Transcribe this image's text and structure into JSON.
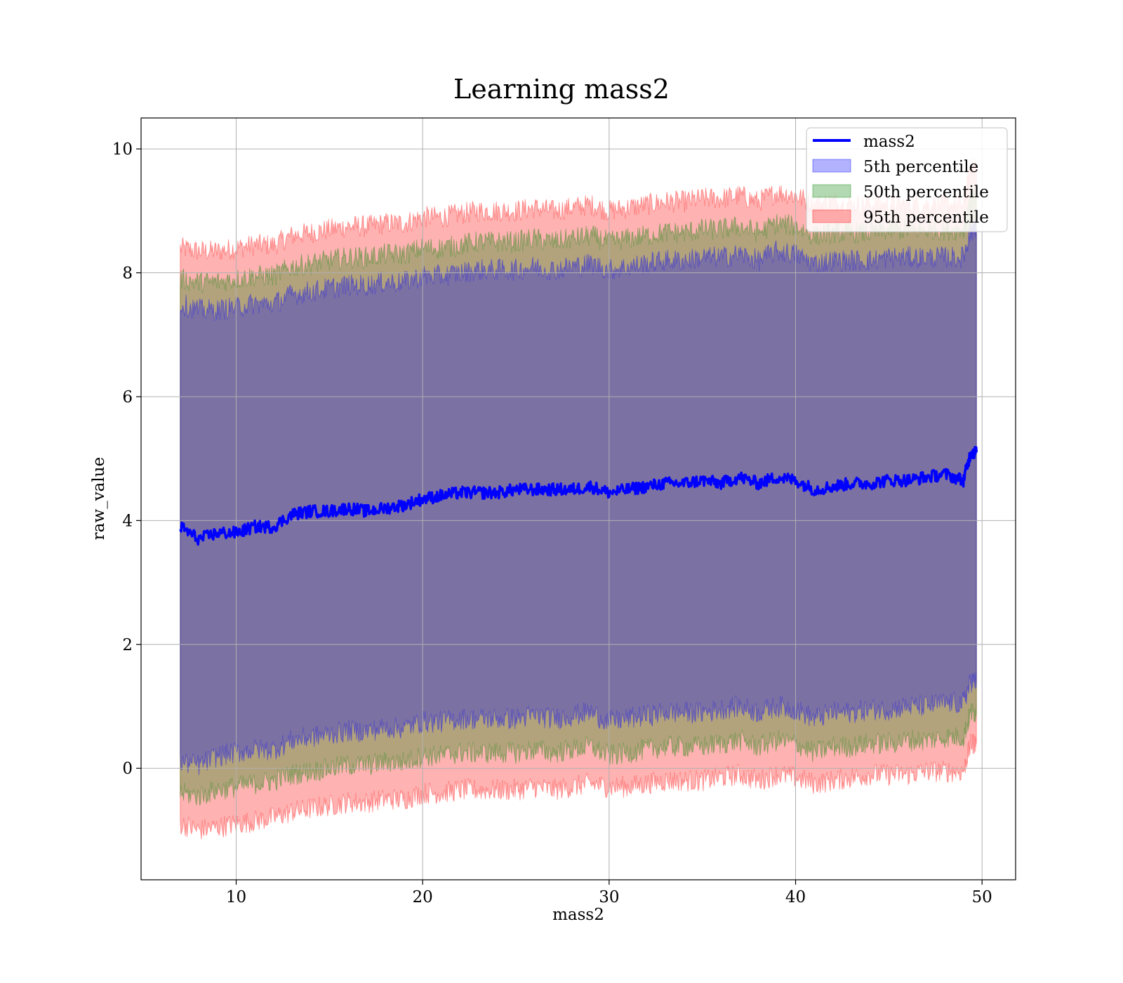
{
  "chart_data": {
    "type": "area",
    "title": "Learning mass2",
    "xlabel": "mass2",
    "ylabel": "raw_value",
    "xlim": [
      4.9,
      51.8
    ],
    "ylim": [
      -1.8,
      10.5
    ],
    "x_ticks": [
      "10",
      "20",
      "30",
      "40",
      "50"
    ],
    "y_ticks": [
      "0",
      "2",
      "4",
      "6",
      "8",
      "10"
    ],
    "grid": true,
    "legend_position": "top-right",
    "x_range": [
      7.0,
      49.7
    ],
    "series": [
      {
        "name": "mass2",
        "kind": "line",
        "color": "#0000ff",
        "x": [
          7,
          8,
          9,
          10,
          11,
          12,
          13,
          14,
          15,
          16,
          17,
          18,
          19,
          20,
          21,
          22,
          23,
          24,
          25,
          26,
          27,
          28,
          29,
          30,
          31,
          32,
          33,
          34,
          35,
          36,
          37,
          38,
          39,
          40,
          41,
          42,
          43,
          44,
          45,
          46,
          47,
          48,
          49,
          49.4,
          49.7
        ],
        "y": [
          3.9,
          3.7,
          3.8,
          3.8,
          3.9,
          3.9,
          4.1,
          4.15,
          4.15,
          4.2,
          4.15,
          4.2,
          4.25,
          4.35,
          4.4,
          4.45,
          4.45,
          4.45,
          4.5,
          4.5,
          4.5,
          4.5,
          4.55,
          4.45,
          4.5,
          4.55,
          4.6,
          4.6,
          4.65,
          4.6,
          4.7,
          4.6,
          4.7,
          4.65,
          4.5,
          4.55,
          4.6,
          4.6,
          4.65,
          4.65,
          4.7,
          4.75,
          4.65,
          5.1,
          5.1
        ]
      },
      {
        "name": "5th percentile",
        "kind": "band",
        "color": "#0000ff",
        "x": [
          7,
          8,
          9,
          10,
          11,
          12,
          13,
          14,
          15,
          16,
          17,
          18,
          19,
          20,
          21,
          22,
          23,
          24,
          25,
          26,
          27,
          28,
          29,
          30,
          31,
          32,
          33,
          34,
          35,
          36,
          37,
          38,
          39,
          40,
          41,
          42,
          43,
          44,
          45,
          46,
          47,
          48,
          49,
          49.4,
          49.7
        ],
        "lower": [
          0.1,
          0.05,
          0.2,
          0.25,
          0.3,
          0.3,
          0.45,
          0.5,
          0.55,
          0.6,
          0.6,
          0.65,
          0.65,
          0.75,
          0.75,
          0.8,
          0.8,
          0.8,
          0.8,
          0.85,
          0.8,
          0.85,
          0.9,
          0.75,
          0.8,
          0.85,
          0.9,
          0.9,
          0.9,
          0.95,
          1.0,
          0.9,
          1.0,
          0.95,
          0.8,
          0.9,
          0.9,
          0.95,
          0.95,
          1.0,
          1.0,
          1.05,
          1.05,
          1.4,
          1.4
        ],
        "upper": [
          7.5,
          7.4,
          7.4,
          7.45,
          7.5,
          7.5,
          7.65,
          7.7,
          7.75,
          7.8,
          7.8,
          7.85,
          7.85,
          7.95,
          7.95,
          8.0,
          8.05,
          8.05,
          8.05,
          8.1,
          8.05,
          8.1,
          8.15,
          8.05,
          8.1,
          8.15,
          8.2,
          8.2,
          8.25,
          8.25,
          8.3,
          8.2,
          8.35,
          8.3,
          8.15,
          8.2,
          8.2,
          8.2,
          8.25,
          8.25,
          8.25,
          8.25,
          8.25,
          8.7,
          8.7
        ]
      },
      {
        "name": "50th percentile",
        "kind": "band",
        "color": "#008000",
        "x": [
          7,
          8,
          9,
          10,
          11,
          12,
          13,
          14,
          15,
          16,
          17,
          18,
          19,
          20,
          21,
          22,
          23,
          24,
          25,
          26,
          27,
          28,
          29,
          30,
          31,
          32,
          33,
          34,
          35,
          36,
          37,
          38,
          39,
          40,
          41,
          42,
          43,
          44,
          45,
          46,
          47,
          48,
          49,
          49.4,
          49.7
        ],
        "lower": [
          -0.4,
          -0.45,
          -0.35,
          -0.3,
          -0.25,
          -0.2,
          -0.1,
          -0.05,
          0.0,
          0.05,
          0.05,
          0.1,
          0.1,
          0.2,
          0.2,
          0.25,
          0.25,
          0.25,
          0.25,
          0.3,
          0.25,
          0.3,
          0.35,
          0.2,
          0.25,
          0.3,
          0.35,
          0.35,
          0.35,
          0.4,
          0.45,
          0.35,
          0.45,
          0.4,
          0.25,
          0.35,
          0.35,
          0.4,
          0.4,
          0.45,
          0.45,
          0.5,
          0.5,
          0.9,
          0.9
        ],
        "upper": [
          7.9,
          7.85,
          7.85,
          7.9,
          7.95,
          7.95,
          8.1,
          8.15,
          8.2,
          8.25,
          8.25,
          8.3,
          8.3,
          8.4,
          8.4,
          8.45,
          8.5,
          8.5,
          8.5,
          8.55,
          8.5,
          8.55,
          8.6,
          8.5,
          8.55,
          8.6,
          8.65,
          8.65,
          8.7,
          8.7,
          8.75,
          8.65,
          8.8,
          8.75,
          8.6,
          8.65,
          8.65,
          8.65,
          8.7,
          8.7,
          8.7,
          8.7,
          8.7,
          9.2,
          9.2
        ]
      },
      {
        "name": "95th percentile",
        "kind": "band",
        "color": "#ff0000",
        "x": [
          7,
          8,
          9,
          10,
          11,
          12,
          13,
          14,
          15,
          16,
          17,
          18,
          19,
          20,
          21,
          22,
          23,
          24,
          25,
          26,
          27,
          28,
          29,
          30,
          31,
          32,
          33,
          34,
          35,
          36,
          37,
          38,
          39,
          40,
          41,
          42,
          43,
          44,
          45,
          46,
          47,
          48,
          49,
          49.4,
          49.7
        ],
        "lower": [
          -0.9,
          -1.0,
          -0.95,
          -0.9,
          -0.85,
          -0.8,
          -0.7,
          -0.65,
          -0.6,
          -0.55,
          -0.55,
          -0.5,
          -0.5,
          -0.4,
          -0.4,
          -0.35,
          -0.35,
          -0.35,
          -0.35,
          -0.3,
          -0.35,
          -0.3,
          -0.25,
          -0.3,
          -0.3,
          -0.25,
          -0.2,
          -0.2,
          -0.2,
          -0.15,
          -0.1,
          -0.2,
          -0.1,
          -0.15,
          -0.25,
          -0.2,
          -0.15,
          -0.1,
          -0.1,
          -0.1,
          -0.05,
          -0.05,
          -0.05,
          0.4,
          0.4
        ],
        "upper": [
          8.4,
          8.35,
          8.35,
          8.4,
          8.45,
          8.45,
          8.6,
          8.65,
          8.7,
          8.75,
          8.75,
          8.8,
          8.8,
          8.9,
          8.9,
          8.95,
          9.0,
          9.0,
          9.0,
          9.05,
          9.0,
          9.05,
          9.1,
          9.0,
          9.05,
          9.1,
          9.15,
          9.15,
          9.2,
          9.2,
          9.25,
          9.15,
          9.3,
          9.25,
          9.1,
          9.15,
          9.1,
          9.1,
          9.1,
          9.1,
          9.1,
          9.1,
          9.1,
          9.7,
          9.7
        ]
      }
    ]
  }
}
